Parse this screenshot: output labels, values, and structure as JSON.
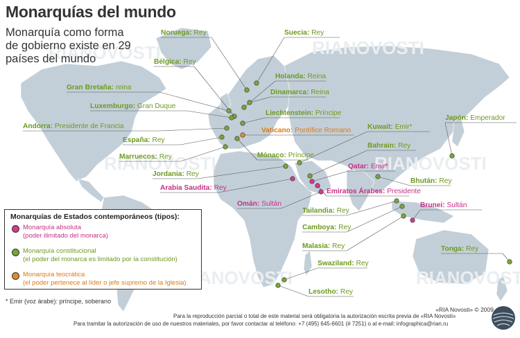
{
  "title": "Monarquías del mundo",
  "subtitle": "Monarquía como forma de gobierno existe en 29 países del mundo",
  "subtitle_lines": [
    "Monarquía como forma",
    "de gobierno existe en 29",
    "países del mundo"
  ],
  "watermark": "RIANOVOSTI",
  "colors": {
    "absoluta": "#d23b8e",
    "constitucional": "#7aa43a",
    "teocratica": "#e08b2d",
    "land": "#c3cfd8",
    "label_green": "#6c9a1e",
    "label_magenta": "#c62f87",
    "label_orange": "#d97a19"
  },
  "legend": {
    "heading": "Monarquías de Estados contemporáneos (tipos):",
    "items": [
      {
        "type": "absoluta",
        "line1": "Monarquía absoluta",
        "line2": "(poder ilimitado del monarca)"
      },
      {
        "type": "constitucional",
        "line1": "Monarquía constitucional",
        "line2": "(el poder del monarca es limitado por la constitución)"
      },
      {
        "type": "teocratica",
        "line1": "Monarquía teocrática",
        "line2": "(el poder pertenece al líder o jefe supremo de la Iglesia)"
      }
    ]
  },
  "countries": [
    {
      "country": "Noruega",
      "title": "Rey",
      "type": "constitucional"
    },
    {
      "country": "Suecia",
      "title": "Rey",
      "type": "constitucional"
    },
    {
      "country": "Bélgica",
      "title": "Rey",
      "type": "constitucional"
    },
    {
      "country": "Holanda",
      "title": "Reina",
      "type": "constitucional"
    },
    {
      "country": "Gran Bretaña",
      "title": "reina",
      "type": "constitucional"
    },
    {
      "country": "Dinamarca",
      "title": "Reina",
      "type": "constitucional"
    },
    {
      "country": "Luxemburgo",
      "title": "Gran Duque",
      "type": "constitucional"
    },
    {
      "country": "Liechtenstein",
      "title": "Príncipe",
      "type": "constitucional"
    },
    {
      "country": "Andorra",
      "title": "Presidente de Francia",
      "type": "constitucional"
    },
    {
      "country": "Vaticano",
      "title": "Pontífice Romano",
      "type": "teocratica"
    },
    {
      "country": "Kuwait",
      "title": "Emir*",
      "type": "constitucional"
    },
    {
      "country": "Japón",
      "title": "Emperador",
      "type": "constitucional"
    },
    {
      "country": "España",
      "title": "Rey",
      "type": "constitucional"
    },
    {
      "country": "Mónaco",
      "title": "Príncipe",
      "type": "constitucional"
    },
    {
      "country": "Bahrain",
      "title": "Rey",
      "type": "constitucional"
    },
    {
      "country": "Marruecos",
      "title": "Rey",
      "type": "constitucional"
    },
    {
      "country": "Qatar",
      "title": "Emir*",
      "type": "absoluta"
    },
    {
      "country": "Jordania",
      "title": "Rey",
      "type": "constitucional"
    },
    {
      "country": "Arabia Saudita",
      "title": "Rey",
      "type": "absoluta"
    },
    {
      "country": "Bhután",
      "title": "Rey",
      "type": "constitucional"
    },
    {
      "country": "Emiratos Árabes",
      "title": "Presidente",
      "type": "absoluta"
    },
    {
      "country": "Omán",
      "title": "Sultán",
      "type": "absoluta"
    },
    {
      "country": "Brunei",
      "title": "Sultán",
      "type": "absoluta"
    },
    {
      "country": "Tailandia",
      "title": "Rey",
      "type": "constitucional"
    },
    {
      "country": "Camboya",
      "title": "Rey",
      "type": "constitucional"
    },
    {
      "country": "Malasia",
      "title": "Rey",
      "type": "constitucional"
    },
    {
      "country": "Tonga",
      "title": "Rey",
      "type": "constitucional"
    },
    {
      "country": "Swaziland",
      "title": "Rey",
      "type": "constitucional"
    },
    {
      "country": "Lesotho",
      "title": "Rey",
      "type": "constitucional"
    }
  ],
  "footnote": "* Emir (voz árabe): príncipe, soberano",
  "credit": "«RIA Novosti» © 2009",
  "footer_line1": "Para la reproducción parcial o total de este material será obligatoria la autorización escrita previa de «RIA Novosti»",
  "footer_line2": "Para tramitar la autorización de uso de nuestros materiales, por favor contactar al teléfono: +7 (495) 645-6601 (# 7251) o al e-mail: infographica@rian.ru"
}
